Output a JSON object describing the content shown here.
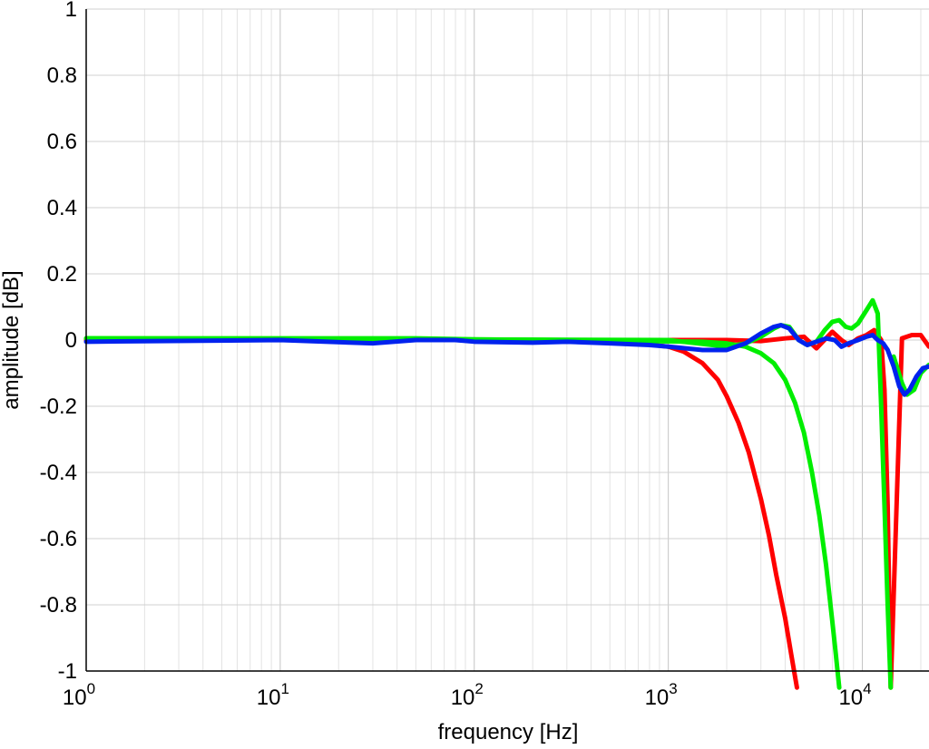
{
  "chart_data": {
    "type": "line",
    "title": "",
    "xlabel": "frequency [Hz]",
    "ylabel": "amplitude [dB]",
    "xscale": "log",
    "xlim": [
      1,
      22050
    ],
    "ylim": [
      -1,
      1
    ],
    "grid": true,
    "legend": "none",
    "xticks": [
      {
        "base": "10",
        "exp": "0"
      },
      {
        "base": "10",
        "exp": "1"
      },
      {
        "base": "10",
        "exp": "2"
      },
      {
        "base": "10",
        "exp": "3"
      },
      {
        "base": "10",
        "exp": "4"
      }
    ],
    "yticks": [
      "-1",
      "-0.8",
      "-0.6",
      "-0.4",
      "-0.2",
      "0",
      "0.2",
      "0.4",
      "0.6",
      "0.8",
      "1"
    ],
    "series": [
      {
        "color": "#ff0000",
        "x": [
          1,
          10,
          100,
          300,
          600,
          1000,
          1200,
          1500,
          1800,
          2000,
          2300,
          2600,
          3000,
          3300,
          3600,
          4000,
          4300,
          4600
        ],
        "y": [
          0,
          0,
          0,
          0,
          -0.005,
          -0.02,
          -0.035,
          -0.07,
          -0.12,
          -0.17,
          -0.25,
          -0.34,
          -0.48,
          -0.59,
          -0.71,
          -0.84,
          -0.95,
          -1.05
        ]
      },
      {
        "color": "#ff0000",
        "x": [
          1,
          1000,
          2000,
          3000,
          4000,
          5000,
          5800,
          7000,
          7800,
          8500,
          9500,
          10500,
          11500,
          12500,
          13000,
          13500,
          14000,
          16000,
          18000,
          20000,
          22050
        ],
        "y": [
          0,
          0,
          0,
          -0.003,
          0.005,
          0.01,
          -0.025,
          0.025,
          0.0,
          -0.015,
          0.005,
          0.015,
          0.03,
          0.0,
          -0.15,
          -0.5,
          -1.05,
          0.005,
          0.015,
          0.015,
          -0.02
        ]
      },
      {
        "color": "#00ee00",
        "x": [
          1,
          50,
          100,
          300,
          600,
          1000,
          1500,
          2000,
          2500,
          3000,
          3500,
          4000,
          4500,
          5000,
          5500,
          6000,
          6500,
          7000,
          7300,
          7600
        ],
        "y": [
          0.005,
          0.005,
          0.002,
          0,
          -0.002,
          -0.004,
          -0.005,
          -0.01,
          -0.02,
          -0.04,
          -0.07,
          -0.12,
          -0.19,
          -0.28,
          -0.4,
          -0.53,
          -0.68,
          -0.85,
          -0.95,
          -1.05
        ]
      },
      {
        "color": "#00ee00",
        "x": [
          1,
          1000,
          2000,
          2500,
          3000,
          3500,
          3800,
          4200,
          4700,
          5200,
          5800,
          6400,
          7000,
          7600,
          8200,
          8800,
          9500,
          10500,
          11300,
          12000,
          12500,
          13000,
          13500,
          14000
        ],
        "y": [
          0.005,
          0.0,
          -0.02,
          -0.01,
          0.01,
          0.035,
          0.045,
          0.04,
          0.0,
          -0.015,
          -0.005,
          0.03,
          0.055,
          0.06,
          0.04,
          0.035,
          0.05,
          0.09,
          0.12,
          0.08,
          -0.2,
          -0.5,
          -0.8,
          -1.05
        ]
      },
      {
        "color": "#00ee00",
        "x": [
          14500,
          16000,
          17000,
          18500,
          20000,
          22050
        ],
        "y": [
          -0.05,
          -0.13,
          -0.165,
          -0.15,
          -0.1,
          -0.075
        ]
      },
      {
        "color": "#0022ee",
        "x": [
          1,
          10,
          30,
          50,
          80,
          100,
          200,
          300,
          500,
          800,
          1000,
          1500,
          2000,
          2500,
          3000,
          3500,
          3800,
          4200,
          4700,
          5200,
          5800,
          6500,
          7200,
          7800,
          8500,
          9500,
          10500,
          11300,
          12000,
          12800,
          13500,
          14500,
          15500,
          16500,
          17500,
          19000,
          20500,
          22050
        ],
        "y": [
          -0.005,
          0,
          -0.01,
          0.0,
          0.0,
          -0.005,
          -0.008,
          -0.005,
          -0.01,
          -0.015,
          -0.02,
          -0.03,
          -0.03,
          -0.01,
          0.02,
          0.04,
          0.045,
          0.035,
          0.0,
          -0.015,
          -0.005,
          0.005,
          0.0,
          -0.02,
          -0.01,
          0.0,
          0.01,
          0.015,
          0.0,
          -0.01,
          -0.03,
          -0.08,
          -0.14,
          -0.165,
          -0.15,
          -0.11,
          -0.085,
          -0.08
        ]
      }
    ]
  }
}
